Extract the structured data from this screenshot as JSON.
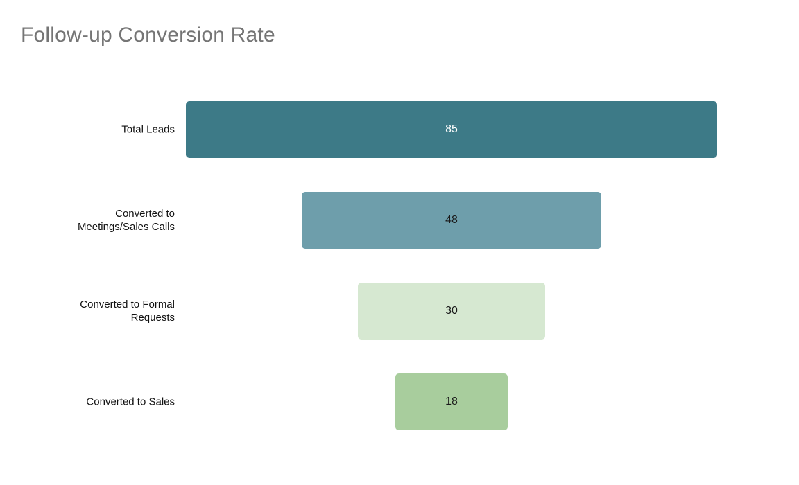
{
  "chart_data": {
    "type": "funnel",
    "title": "Follow-up Conversion Rate",
    "title_color": "#757575",
    "categories": [
      "Total Leads",
      "Converted to Meetings/Sales Calls",
      "Converted to Formal Requests",
      "Converted to Sales"
    ],
    "values": [
      85,
      48,
      30,
      18
    ],
    "max_value": 85,
    "orientation": "horizontal-centered",
    "grid": false,
    "legend": false,
    "label_color": "#111111",
    "stages": [
      {
        "label": "Total Leads",
        "value": "85",
        "bar_color": "#3d7a87",
        "value_color": "#ffffff"
      },
      {
        "label": "Converted to\nMeetings/Sales Calls",
        "value": "48",
        "bar_color": "#6e9eab",
        "value_color": "#1a1a1a"
      },
      {
        "label": "Converted to Formal\nRequests",
        "value": "30",
        "bar_color": "#d6e8d1",
        "value_color": "#1a1a1a"
      },
      {
        "label": "Converted to Sales",
        "value": "18",
        "bar_color": "#a8cd9d",
        "value_color": "#1a1a1a"
      }
    ]
  }
}
